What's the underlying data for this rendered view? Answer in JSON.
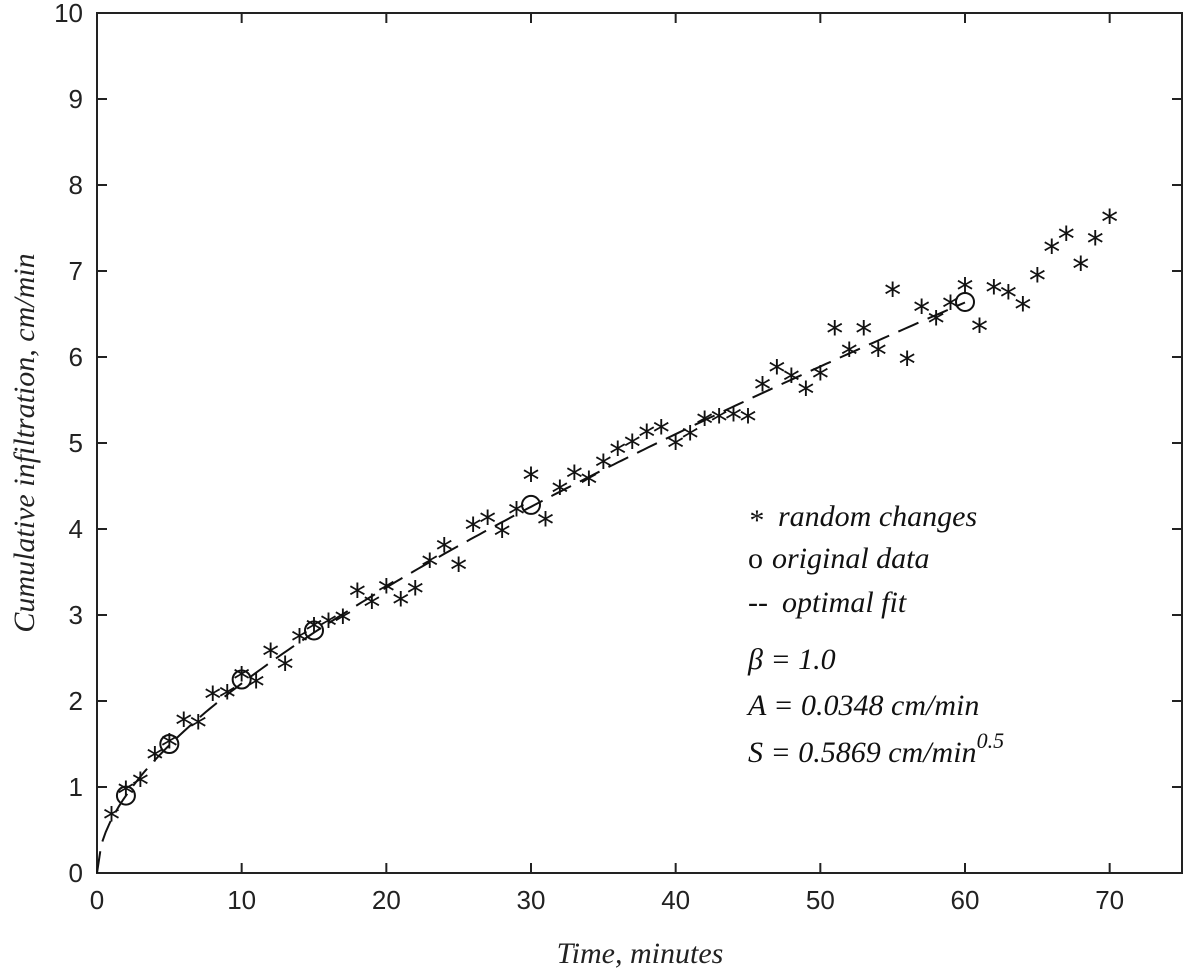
{
  "chart_data": {
    "type": "scatter",
    "xlabel": "Time, minutes",
    "ylabel": "Cumulative infiltration, cm/min",
    "xlim": [
      0,
      75
    ],
    "ylim": [
      0,
      10
    ],
    "x_ticks": [
      0,
      10,
      20,
      30,
      40,
      50,
      60,
      70
    ],
    "y_ticks": [
      0,
      1,
      2,
      3,
      4,
      5,
      6,
      7,
      8,
      9,
      10
    ],
    "grid": false,
    "legend_position": "right",
    "series": [
      {
        "name": "random changes",
        "marker": "*",
        "x": [
          1,
          2,
          3,
          4,
          5,
          6,
          7,
          8,
          9,
          10,
          11,
          12,
          13,
          14,
          15,
          16,
          17,
          18,
          19,
          20,
          21,
          22,
          23,
          24,
          25,
          26,
          27,
          28,
          29,
          30,
          31,
          32,
          33,
          34,
          35,
          36,
          37,
          38,
          39,
          40,
          41,
          42,
          43,
          44,
          45,
          46,
          47,
          48,
          49,
          50,
          51,
          52,
          53,
          54,
          55,
          56,
          57,
          58,
          59,
          60,
          61,
          62,
          63,
          64,
          65,
          66,
          67,
          68,
          69,
          70
        ],
        "y": [
          0.65,
          0.95,
          1.05,
          1.35,
          1.5,
          1.75,
          1.72,
          2.05,
          2.07,
          2.28,
          2.2,
          2.55,
          2.4,
          2.72,
          2.85,
          2.9,
          2.95,
          3.25,
          3.12,
          3.3,
          3.15,
          3.28,
          3.6,
          3.78,
          3.55,
          4.02,
          4.1,
          3.95,
          4.2,
          4.6,
          4.08,
          4.45,
          4.62,
          4.55,
          4.75,
          4.9,
          4.98,
          5.1,
          5.15,
          4.97,
          5.08,
          5.25,
          5.28,
          5.3,
          5.28,
          5.65,
          5.85,
          5.75,
          5.6,
          5.78,
          6.3,
          6.05,
          6.3,
          6.05,
          6.75,
          5.95,
          6.55,
          6.42,
          6.6,
          6.8,
          6.33,
          6.78,
          6.72,
          6.58,
          6.92,
          7.25,
          7.4,
          7.05,
          7.35,
          7.6
        ]
      },
      {
        "name": "original data",
        "marker": "o",
        "x": [
          2,
          5,
          10,
          15,
          30,
          60
        ],
        "y": [
          0.9,
          1.5,
          2.25,
          2.82,
          4.28,
          6.64
        ]
      },
      {
        "name": "optimal fit",
        "line_style": "dashed",
        "model": "I = S*t^0.5 + A*t",
        "parameters": {
          "S": 0.5869,
          "A": 0.0348
        },
        "x_range": [
          0,
          60
        ]
      }
    ],
    "annotations": {
      "beta": "β = 1.0",
      "A_text": "A = 0.0348 cm/min",
      "S_text": "S = 0.5869 cm/min",
      "S_exponent": "0.5"
    }
  },
  "legend": {
    "random_symbol": "*",
    "random_label": "random changes",
    "original_symbol": "o",
    "original_label": "original data",
    "fit_symbol": "--",
    "fit_label": "optimal fit"
  }
}
